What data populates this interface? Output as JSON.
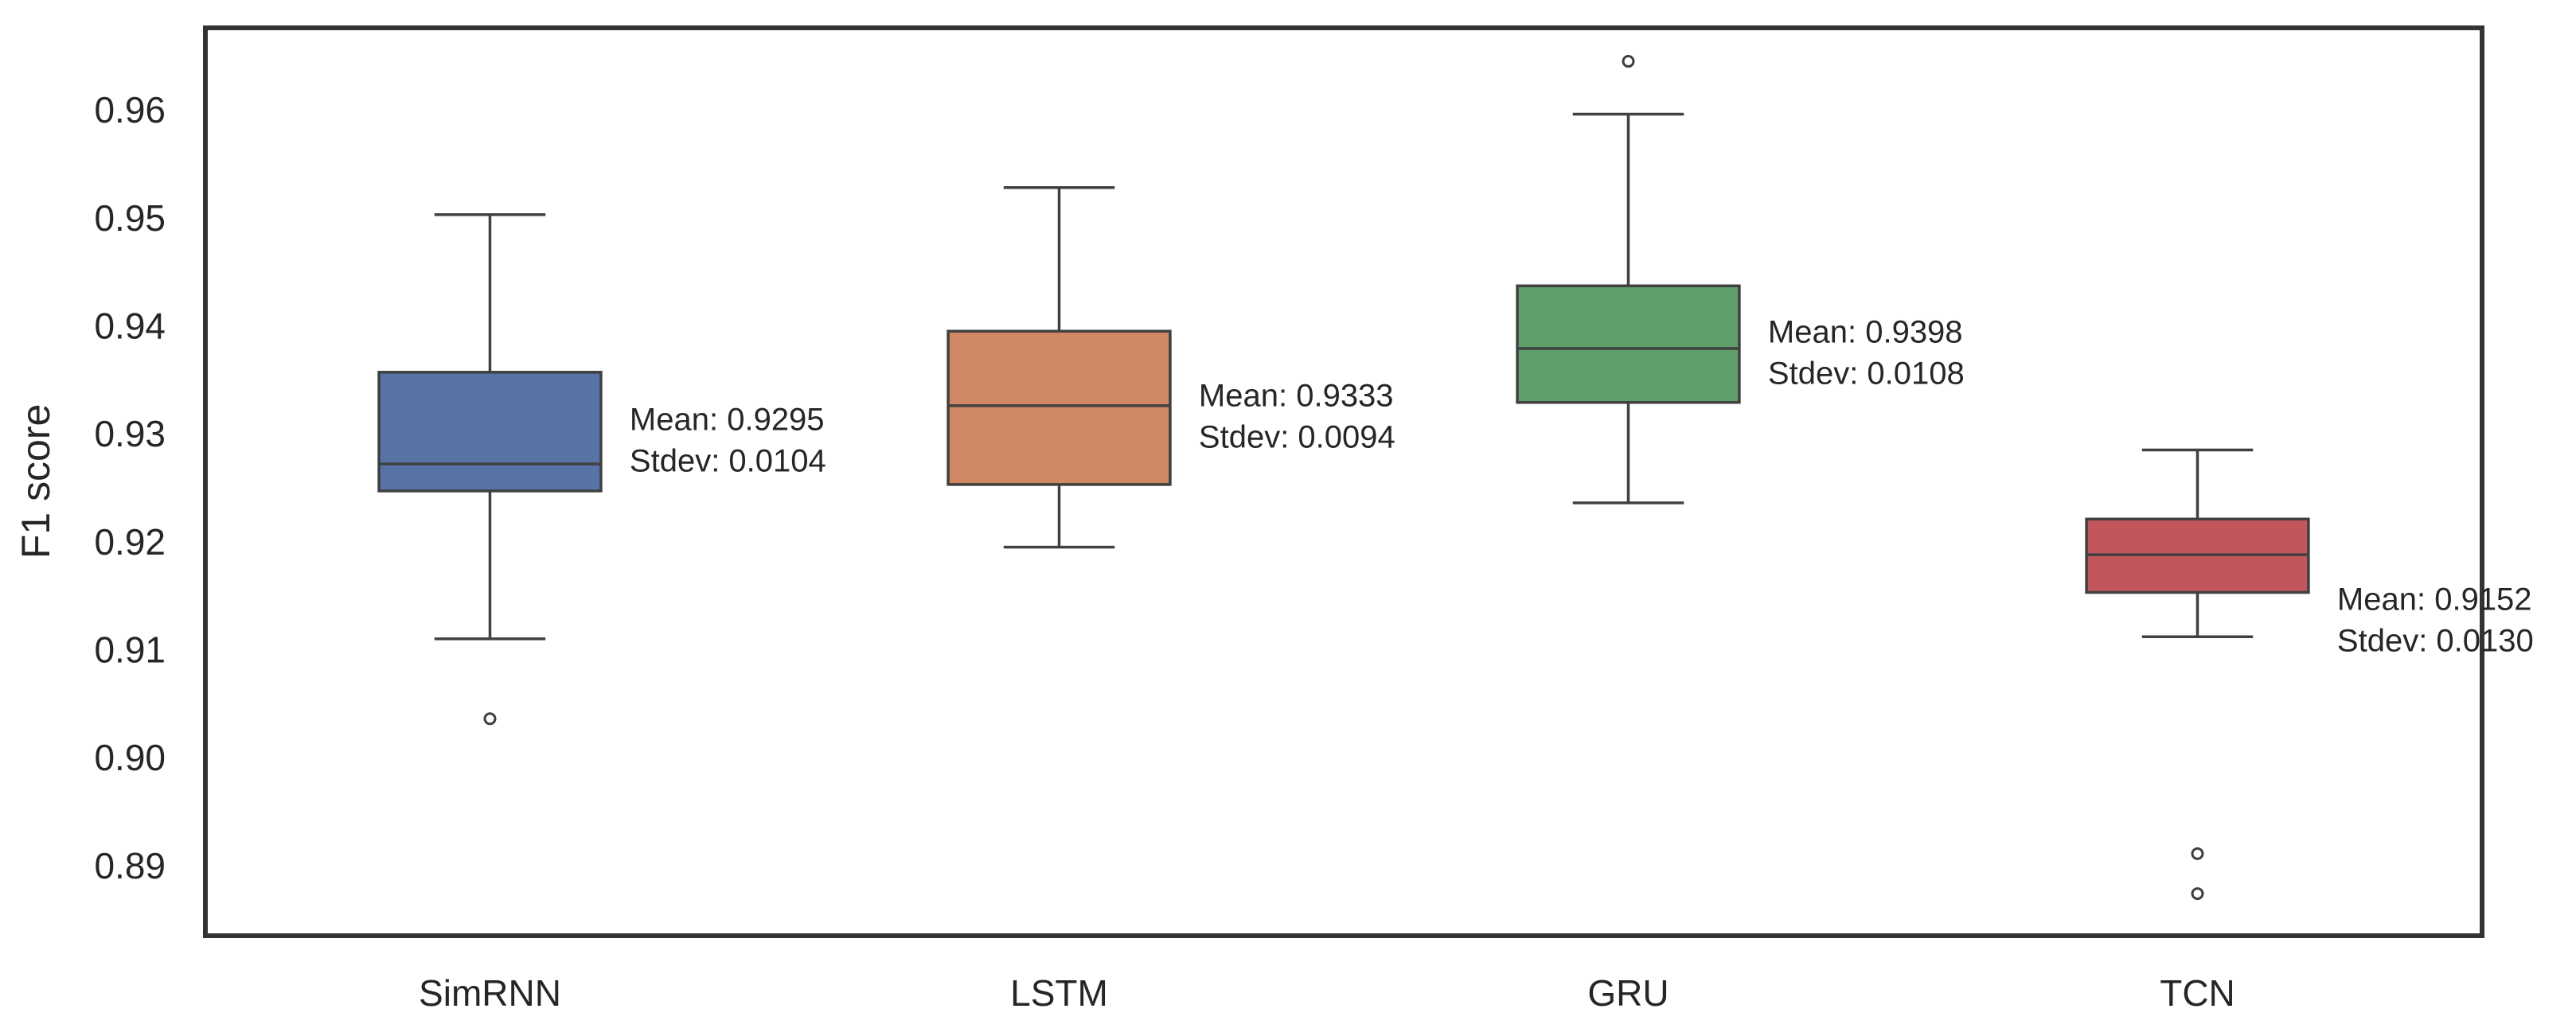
{
  "chart_data": {
    "type": "box",
    "ylabel": "F1 score",
    "xlabel": "",
    "ylim": [
      0.8835,
      0.9676
    ],
    "yticks": [
      0.89,
      0.9,
      0.91,
      0.92,
      0.93,
      0.94,
      0.95,
      0.96
    ],
    "ytick_labels": [
      "0.89",
      "0.90",
      "0.91",
      "0.92",
      "0.93",
      "0.94",
      "0.95",
      "0.96"
    ],
    "grid": false,
    "categories": [
      "SimRNN",
      "LSTM",
      "GRU",
      "TCN"
    ],
    "boxes": [
      {
        "name": "SimRNN",
        "color": "#5874a6",
        "whisker_low": 0.911,
        "q1": 0.9247,
        "median": 0.9272,
        "q3": 0.9357,
        "whisker_high": 0.9503,
        "outliers": [
          0.9036
        ],
        "mean_text": "Mean: 0.9295",
        "stdev_text": "Stdev: 0.0104"
      },
      {
        "name": "LSTM",
        "color": "#cf8863",
        "whisker_low": 0.9195,
        "q1": 0.9253,
        "median": 0.9326,
        "q3": 0.9395,
        "whisker_high": 0.9528,
        "outliers": [],
        "mean_text": "Mean: 0.9333",
        "stdev_text": "Stdev: 0.0094"
      },
      {
        "name": "GRU",
        "color": "#5f9f6c",
        "whisker_low": 0.9236,
        "q1": 0.9329,
        "median": 0.9379,
        "q3": 0.9437,
        "whisker_high": 0.9596,
        "outliers": [
          0.9645
        ],
        "mean_text": "Mean: 0.9398",
        "stdev_text": "Stdev: 0.0108"
      },
      {
        "name": "TCN",
        "color": "#c1565d",
        "whisker_low": 0.9112,
        "q1": 0.9153,
        "median": 0.9188,
        "q3": 0.9221,
        "whisker_high": 0.9285,
        "outliers": [
          0.8911,
          0.8874
        ],
        "mean_text": "Mean: 0.9152",
        "stdev_text": "Stdev: 0.0130"
      }
    ]
  }
}
